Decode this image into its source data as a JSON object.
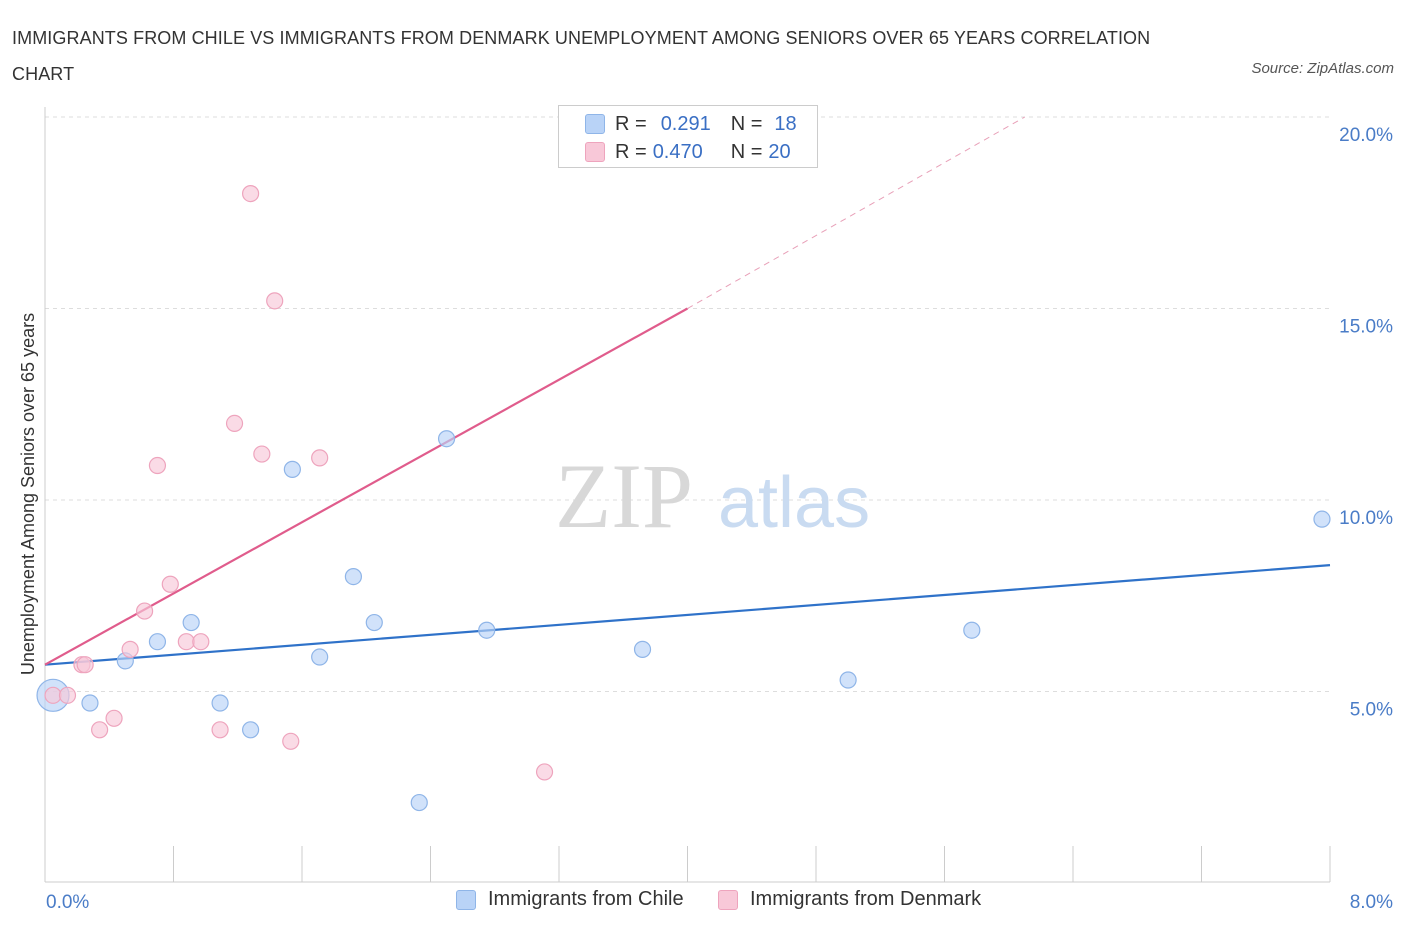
{
  "title": "IMMIGRANTS FROM CHILE VS IMMIGRANTS FROM DENMARK UNEMPLOYMENT AMONG SENIORS OVER 65 YEARS CORRELATION CHART",
  "source": "Source: ZipAtlas.com",
  "watermark": {
    "zip": "ZIP",
    "atlas": "atlas"
  },
  "legend": {
    "r_label": "R =",
    "n_label": "N =",
    "series": [
      {
        "name": "Immigrants from Chile",
        "r": "0.291",
        "n": "18",
        "fill": "#b9d3f7",
        "stroke": "#8fb5e8"
      },
      {
        "name": "Immigrants from Denmark",
        "r": "0.470",
        "n": "20",
        "fill": "#f8c8d8",
        "stroke": "#eea4bd"
      }
    ]
  },
  "chart_data": {
    "type": "scatter",
    "title": "IMMIGRANTS FROM CHILE VS IMMIGRANTS FROM DENMARK UNEMPLOYMENT AMONG SENIORS OVER 65 YEARS CORRELATION CHART",
    "xlabel": "",
    "ylabel": "Unemployment Among Seniors over 65 years",
    "xlim": [
      0,
      8
    ],
    "ylim": [
      0,
      20
    ],
    "x_tick_labels": [
      "0.0%",
      "8.0%"
    ],
    "y_ticks": [
      5,
      10,
      15,
      20
    ],
    "y_tick_labels": [
      "5.0%",
      "10.0%",
      "15.0%",
      "20.0%"
    ],
    "grid": true,
    "series": [
      {
        "name": "Immigrants from Chile",
        "color": "#8fb5e8",
        "fill": "#b9d3f7",
        "trend_color": "#2f72c9",
        "trend": {
          "x": [
            0,
            8
          ],
          "y": [
            5.7,
            8.3
          ]
        },
        "points": [
          {
            "x": 0.05,
            "y": 4.9,
            "big": true
          },
          {
            "x": 0.28,
            "y": 4.7
          },
          {
            "x": 0.5,
            "y": 5.8
          },
          {
            "x": 0.7,
            "y": 6.3
          },
          {
            "x": 0.91,
            "y": 6.8
          },
          {
            "x": 1.09,
            "y": 4.7
          },
          {
            "x": 1.28,
            "y": 4.0
          },
          {
            "x": 1.54,
            "y": 10.8
          },
          {
            "x": 1.71,
            "y": 5.9
          },
          {
            "x": 1.92,
            "y": 8.0
          },
          {
            "x": 2.05,
            "y": 6.8
          },
          {
            "x": 2.33,
            "y": 2.1
          },
          {
            "x": 2.5,
            "y": 11.6
          },
          {
            "x": 2.75,
            "y": 6.6
          },
          {
            "x": 3.72,
            "y": 6.1
          },
          {
            "x": 5.0,
            "y": 5.3
          },
          {
            "x": 5.77,
            "y": 6.6
          },
          {
            "x": 7.95,
            "y": 9.5
          }
        ]
      },
      {
        "name": "Immigrants from Denmark",
        "color": "#eea4bd",
        "fill": "#f8c8d8",
        "trend_color": "#e05c8c",
        "trend": {
          "x": [
            0,
            4.0
          ],
          "y": [
            5.7,
            15.0
          ]
        },
        "trend_dashed": {
          "x": [
            4.0,
            6.1
          ],
          "y": [
            15.0,
            20.0
          ]
        },
        "points": [
          {
            "x": 0.05,
            "y": 4.9
          },
          {
            "x": 0.14,
            "y": 4.9
          },
          {
            "x": 0.23,
            "y": 5.7
          },
          {
            "x": 0.34,
            "y": 4.0
          },
          {
            "x": 0.43,
            "y": 4.3
          },
          {
            "x": 0.53,
            "y": 6.1
          },
          {
            "x": 0.62,
            "y": 7.1
          },
          {
            "x": 0.7,
            "y": 10.9
          },
          {
            "x": 0.78,
            "y": 7.8
          },
          {
            "x": 0.88,
            "y": 6.3
          },
          {
            "x": 0.97,
            "y": 6.3
          },
          {
            "x": 1.09,
            "y": 4.0
          },
          {
            "x": 1.18,
            "y": 12.0
          },
          {
            "x": 1.28,
            "y": 18.0
          },
          {
            "x": 1.35,
            "y": 11.2
          },
          {
            "x": 1.43,
            "y": 15.2
          },
          {
            "x": 1.53,
            "y": 3.7
          },
          {
            "x": 1.71,
            "y": 11.1
          },
          {
            "x": 3.11,
            "y": 2.9
          },
          {
            "x": 0.25,
            "y": 5.7
          }
        ]
      }
    ]
  }
}
